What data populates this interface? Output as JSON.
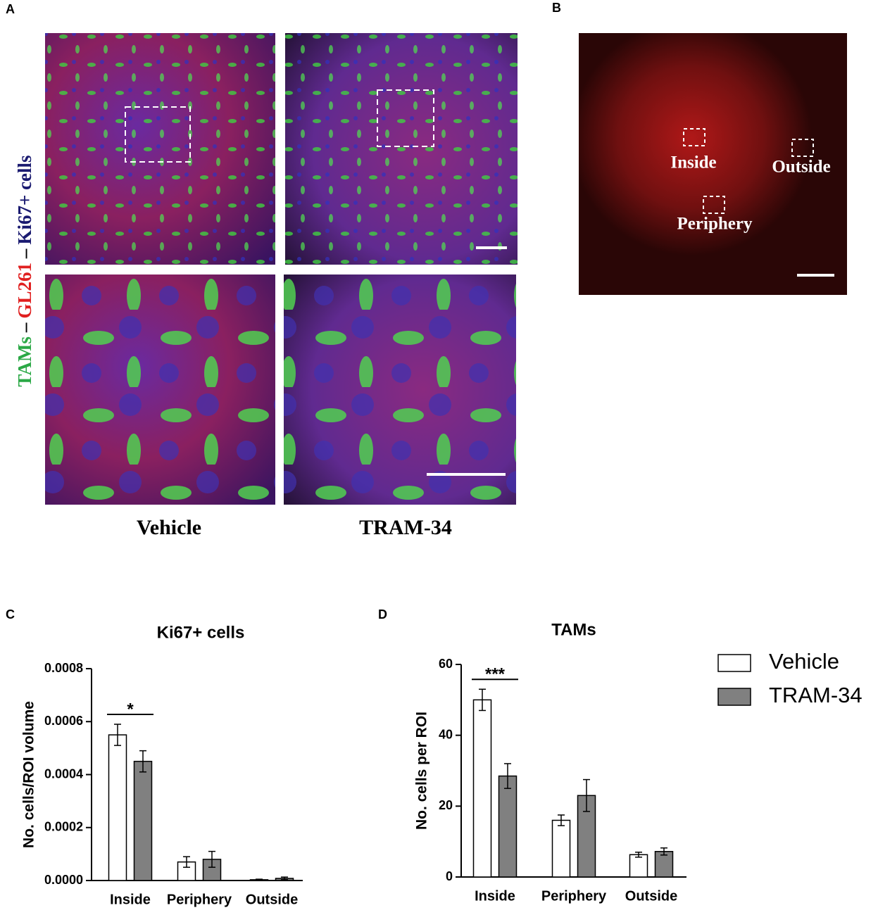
{
  "figure": {
    "panel_labels": [
      "A",
      "B",
      "C",
      "D"
    ],
    "a_ylabel": [
      "TAMs",
      "–",
      "GL261",
      "–",
      "Ki67+ cells"
    ],
    "a_columns": [
      "Vehicle",
      "TRAM-34"
    ],
    "b_regions": [
      "Inside",
      "Outside",
      "Periphery"
    ]
  },
  "chart_data": [
    {
      "type": "bar",
      "title": "Ki67+ cells",
      "ylabel": "No. cells/ROI volume",
      "categories": [
        "Inside",
        "Periphery",
        "Outside"
      ],
      "series": [
        {
          "color": "#ffffff",
          "values": [
            0.00055,
            7e-05,
            3e-06
          ],
          "errors": [
            4e-05,
            2e-05,
            2e-06
          ]
        },
        {
          "color": "#808080",
          "values": [
            0.00045,
            8e-05,
            8e-06
          ],
          "errors": [
            4e-05,
            3e-05,
            5e-06
          ]
        }
      ],
      "ylim": [
        0,
        0.0008
      ],
      "yticks": [
        {
          "value": 0,
          "label": "0.0000"
        },
        {
          "value": 0.0002,
          "label": "0.0002"
        },
        {
          "value": 0.0004,
          "label": "0.0004"
        },
        {
          "value": 0.0006,
          "label": "0.0006"
        },
        {
          "value": 0.0008,
          "label": "0.0008"
        }
      ],
      "annotations": [
        {
          "text": "*"
        }
      ]
    },
    {
      "type": "bar",
      "title": "TAMs",
      "ylabel": "No. cells per ROI",
      "categories": [
        "Inside",
        "Periphery",
        "Outside"
      ],
      "series": [
        {
          "name": "Vehicle",
          "color": "#ffffff",
          "values": [
            50,
            16,
            6.3
          ],
          "errors": [
            3,
            1.5,
            0.7
          ]
        },
        {
          "name": "TRAM-34",
          "color": "#808080",
          "values": [
            28.5,
            23,
            7.2
          ],
          "errors": [
            3.5,
            4.5,
            1
          ]
        }
      ],
      "ylim": [
        0,
        60
      ],
      "yticks": [
        0,
        20,
        40,
        60
      ],
      "annotations": [
        {
          "text": "***"
        }
      ]
    }
  ]
}
